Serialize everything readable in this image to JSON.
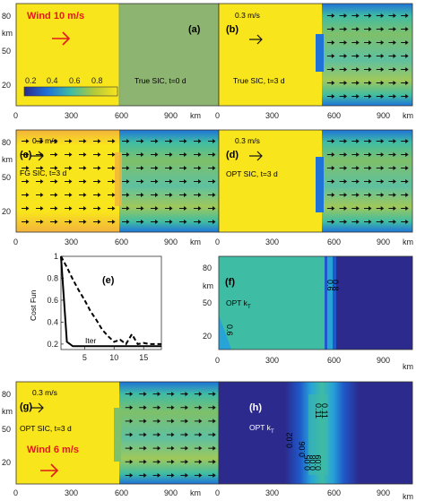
{
  "colors": {
    "ice_yellow": "#f9e51c",
    "teal_band": "#3fbca4",
    "mid_green": "#7fc06a",
    "blue": "#1f73d8",
    "deep_blue": "#2c2a8d",
    "true_sic_fill": "#8db571",
    "wind_red": "#e11a1a"
  },
  "icons": {
    "wind_arrow": "arrow-right-icon",
    "current_arrow": "arrow-right-icon"
  },
  "chart_data": [
    {
      "panel": "a",
      "type": "heatmap",
      "label": "True SIC, t=0 d",
      "annotation": "Wind  10 m/s",
      "colorbar": {
        "ticks": [
          "0.2",
          "0.4",
          "0.6",
          "0.8"
        ],
        "range": [
          0.1,
          0.9
        ]
      },
      "xticks": [
        "0",
        "300",
        "600",
        "900"
      ],
      "xunit": "km",
      "yticks": [
        "80",
        "50",
        "20"
      ],
      "yunit": "km"
    },
    {
      "panel": "b",
      "type": "heatmap",
      "label": "True SIC, t=3 d",
      "annotation": "0.3 m/s",
      "xticks": [
        "0",
        "300",
        "600",
        "900"
      ],
      "xunit": "km",
      "yticks": [
        "80",
        "50",
        "20"
      ],
      "yunit": "km"
    },
    {
      "panel": "c",
      "type": "heatmap",
      "label": "FG SIC, t=3 d",
      "annotation": "0.3 m/s",
      "xticks": [
        "0",
        "300",
        "600",
        "900"
      ],
      "xunit": "km",
      "yticks": [
        "80",
        "50",
        "20"
      ],
      "yunit": "km"
    },
    {
      "panel": "d",
      "type": "heatmap",
      "label": "OPT SIC, t=3 d",
      "annotation": "0.3 m/s",
      "xticks": [
        "0",
        "300",
        "600",
        "900"
      ],
      "xunit": "km",
      "yticks": [
        "80",
        "50",
        "20"
      ],
      "yunit": "km"
    },
    {
      "panel": "e",
      "type": "line",
      "ylabel": "Cost Fun",
      "xlabel": "Iter",
      "xlim": [
        1,
        18
      ],
      "ylim": [
        0.15,
        1.0
      ],
      "xticks": [
        "5",
        "10",
        "15"
      ],
      "yticks": [
        "0.2",
        "0.4",
        "0.6",
        "0.8",
        "1"
      ],
      "series": [
        {
          "style": "solid",
          "x": [
            1,
            2,
            3,
            4,
            5,
            6,
            7,
            8,
            9,
            10,
            11,
            12,
            13,
            14,
            15,
            16,
            17,
            18
          ],
          "y": [
            1.0,
            0.22,
            0.18,
            0.18,
            0.18,
            0.18,
            0.18,
            0.18,
            0.18,
            0.18,
            0.18,
            0.18,
            0.18,
            0.18,
            0.18,
            0.18,
            0.18,
            0.18
          ]
        },
        {
          "style": "dashed",
          "x": [
            1,
            2,
            3,
            4,
            5,
            6,
            7,
            8,
            9,
            10,
            11,
            12,
            13,
            14,
            15,
            16,
            17,
            18
          ],
          "y": [
            1.0,
            0.9,
            0.79,
            0.69,
            0.6,
            0.5,
            0.42,
            0.33,
            0.27,
            0.22,
            0.24,
            0.2,
            0.29,
            0.2,
            0.21,
            0.2,
            0.2,
            0.2
          ]
        }
      ]
    },
    {
      "panel": "f",
      "type": "heatmap",
      "label": "OPT k",
      "sub": "T",
      "contours": [
        "0.6",
        "0.8",
        "0.6"
      ],
      "xticks": [
        "0",
        "300",
        "600",
        "900"
      ],
      "xunit": "km",
      "yticks": [
        "80",
        "50",
        "20"
      ],
      "yunit": "km"
    },
    {
      "panel": "g",
      "type": "heatmap",
      "label": "OPT SIC, t=3 d",
      "annotation": "0.3 m/s",
      "wind": "Wind  6 m/s",
      "xticks": [
        "0",
        "300",
        "600",
        "900"
      ],
      "xunit": "km",
      "yticks": [
        "80",
        "50",
        "20"
      ],
      "yunit": "km"
    },
    {
      "panel": "h",
      "type": "heatmap",
      "label": "OPT k",
      "sub": "T",
      "contours": [
        "0.02",
        "0.06",
        "0.11",
        "0.11",
        "0.05",
        "0.08",
        "0.09"
      ],
      "xticks": [
        "0",
        "300",
        "600",
        "900"
      ],
      "xunit": "km",
      "yticks": [
        "80",
        "50",
        "20"
      ],
      "yunit": "km"
    }
  ]
}
